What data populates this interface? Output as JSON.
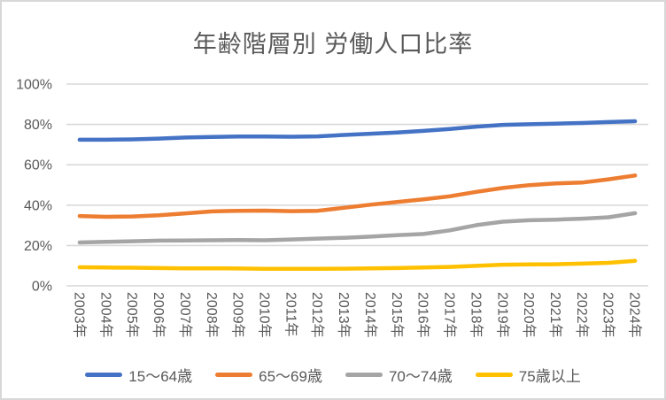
{
  "chart_data": {
    "type": "line",
    "title": "年齢階層別 労働人口比率",
    "categories": [
      "2003年",
      "2004年",
      "2005年",
      "2006年",
      "2007年",
      "2008年",
      "2009年",
      "2010年",
      "2011年",
      "2012年",
      "2013年",
      "2014年",
      "2015年",
      "2016年",
      "2017年",
      "2018年",
      "2019年",
      "2020年",
      "2021年",
      "2022年",
      "2023年",
      "2024年"
    ],
    "series": [
      {
        "name": "15〜64歳",
        "color": "#4472C4",
        "values": [
          72.4,
          72.4,
          72.6,
          73.0,
          73.5,
          73.8,
          74.0,
          74.0,
          73.9,
          74.1,
          74.8,
          75.4,
          76.0,
          76.8,
          77.7,
          78.9,
          79.8,
          80.1,
          80.4,
          80.7,
          81.2,
          81.6
        ]
      },
      {
        "name": "65〜69歳",
        "color": "#ED7D31",
        "values": [
          34.6,
          34.2,
          34.4,
          35.0,
          35.9,
          36.9,
          37.2,
          37.3,
          37.0,
          37.2,
          38.7,
          40.2,
          41.6,
          42.9,
          44.4,
          46.6,
          48.5,
          49.9,
          50.8,
          51.2,
          52.8,
          54.7
        ]
      },
      {
        "name": "70〜74歳",
        "color": "#A5A5A5",
        "values": [
          21.5,
          21.8,
          22.1,
          22.4,
          22.5,
          22.6,
          22.7,
          22.6,
          23.0,
          23.4,
          23.8,
          24.4,
          25.1,
          25.7,
          27.5,
          30.1,
          31.8,
          32.5,
          32.8,
          33.3,
          34.0,
          36.0
        ]
      },
      {
        "name": "75歳以上",
        "color": "#FFC000",
        "values": [
          9.2,
          9.1,
          9.0,
          8.8,
          8.7,
          8.7,
          8.6,
          8.4,
          8.4,
          8.4,
          8.5,
          8.7,
          8.8,
          9.1,
          9.4,
          9.9,
          10.5,
          10.6,
          10.7,
          11.0,
          11.4,
          12.4
        ]
      }
    ],
    "y_axis": {
      "min": 0,
      "max": 100,
      "step": 20,
      "tick_labels": [
        "0%",
        "20%",
        "40%",
        "60%",
        "80%",
        "100%"
      ]
    },
    "x_axis": {
      "label_rotation_deg": 90
    },
    "legend_position": "bottom",
    "grid": true,
    "colors": {
      "gridline": "#D9D9D9",
      "axis_text": "#595959",
      "title_text": "#595959",
      "background": "#FFFFFF",
      "border": "#D7D7D7"
    }
  }
}
